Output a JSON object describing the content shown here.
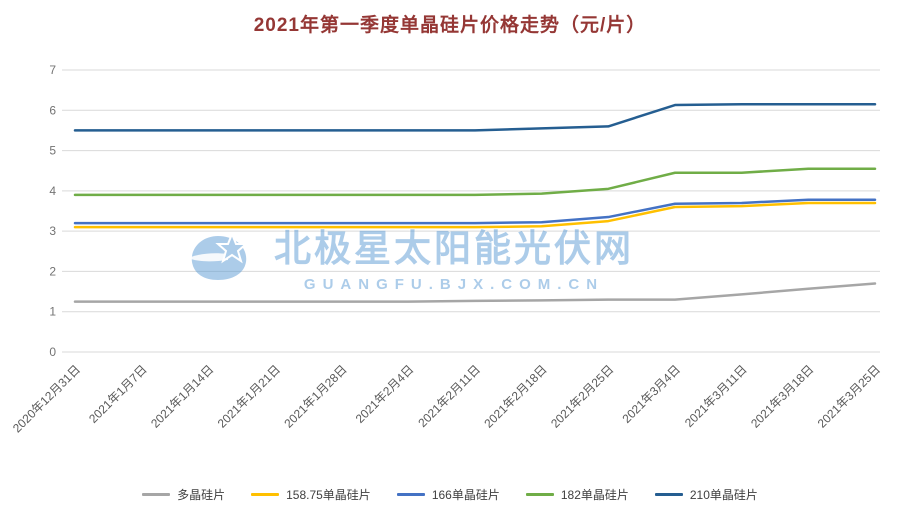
{
  "title": "2021年第一季度单晶硅片价格走势（元/片）",
  "watermark": {
    "line1": "北极星太阳能光伏网",
    "line2": "GUANGFU.BJX.COM.CN"
  },
  "colors": {
    "title": "#953735",
    "gridline": "#d9d9d9",
    "axis_text": "#595959",
    "watermark": "#5b9bd5"
  },
  "chart_data": {
    "type": "line",
    "title": "2021年第一季度单晶硅片价格走势（元/片）",
    "categories": [
      "2020年12月31日",
      "2021年1月7日",
      "2021年1月14日",
      "2021年1月21日",
      "2021年1月28日",
      "2021年2月4日",
      "2021年2月11日",
      "2021年2月18日",
      "2021年2月25日",
      "2021年3月4日",
      "2021年3月11日",
      "2021年3月18日",
      "2021年3月25日"
    ],
    "series": [
      {
        "name": "多晶硅片",
        "color": "#a6a6a6",
        "values": [
          1.25,
          1.25,
          1.25,
          1.25,
          1.25,
          1.25,
          1.27,
          1.28,
          1.3,
          1.3,
          1.43,
          1.57,
          1.7
        ]
      },
      {
        "name": "158.75单晶硅片",
        "color": "#ffc000",
        "values": [
          3.1,
          3.1,
          3.1,
          3.1,
          3.1,
          3.1,
          3.1,
          3.12,
          3.25,
          3.6,
          3.62,
          3.7,
          3.7
        ]
      },
      {
        "name": "166单晶硅片",
        "color": "#4472c4",
        "values": [
          3.2,
          3.2,
          3.2,
          3.2,
          3.2,
          3.2,
          3.2,
          3.22,
          3.35,
          3.68,
          3.7,
          3.78,
          3.78
        ]
      },
      {
        "name": "182单晶硅片",
        "color": "#70ad47",
        "values": [
          3.9,
          3.9,
          3.9,
          3.9,
          3.9,
          3.9,
          3.9,
          3.93,
          4.05,
          4.45,
          4.45,
          4.55,
          4.55
        ]
      },
      {
        "name": "210单晶硅片",
        "color": "#255e91",
        "values": [
          5.5,
          5.5,
          5.5,
          5.5,
          5.5,
          5.5,
          5.5,
          5.55,
          5.6,
          6.13,
          6.15,
          6.15,
          6.15
        ]
      }
    ],
    "xlabel": "",
    "ylabel": "",
    "ylim": [
      0,
      7
    ],
    "yticks": [
      0,
      1,
      2,
      3,
      4,
      5,
      6,
      7
    ],
    "grid": true,
    "legend_position": "bottom"
  }
}
